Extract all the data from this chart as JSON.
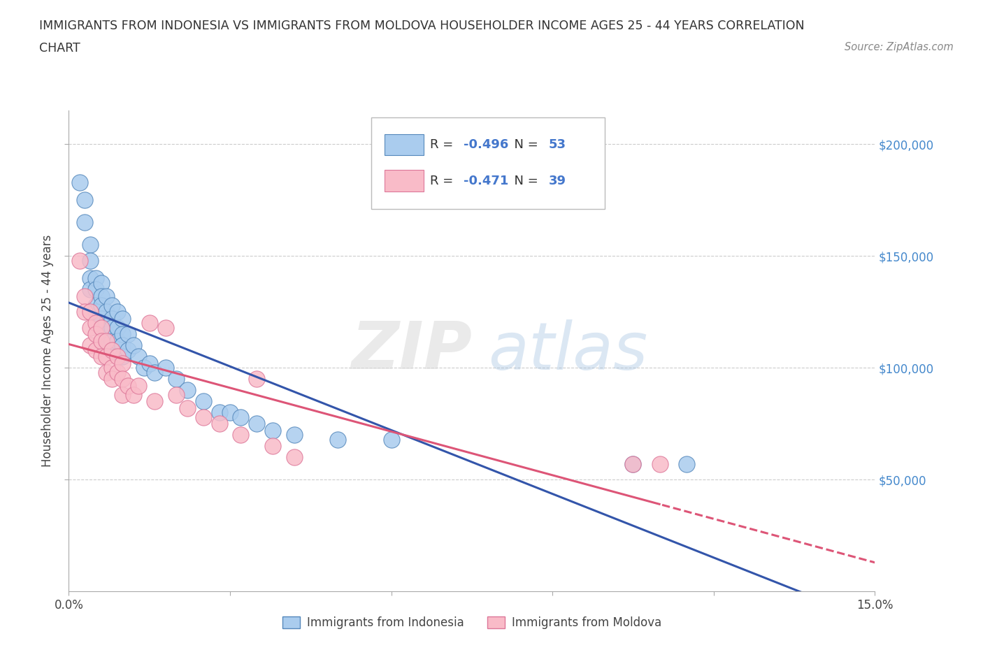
{
  "title_line1": "IMMIGRANTS FROM INDONESIA VS IMMIGRANTS FROM MOLDOVA HOUSEHOLDER INCOME AGES 25 - 44 YEARS CORRELATION",
  "title_line2": "CHART",
  "source": "Source: ZipAtlas.com",
  "ylabel": "Householder Income Ages 25 - 44 years",
  "xlim": [
    0.0,
    0.15
  ],
  "ylim": [
    0,
    215000
  ],
  "yticks": [
    50000,
    100000,
    150000,
    200000
  ],
  "yticklabels": [
    "$50,000",
    "$100,000",
    "$150,000",
    "$200,000"
  ],
  "indonesia_color": "#aaccee",
  "indonesia_edge": "#5588bb",
  "moldova_color": "#f9bbc8",
  "moldova_edge": "#dd7799",
  "indonesia_R": -0.496,
  "indonesia_N": 53,
  "moldova_R": -0.471,
  "moldova_N": 39,
  "indonesia_line_color": "#3355aa",
  "moldova_line_color": "#dd5577",
  "indonesia_x": [
    0.002,
    0.003,
    0.003,
    0.004,
    0.004,
    0.004,
    0.004,
    0.005,
    0.005,
    0.005,
    0.005,
    0.006,
    0.006,
    0.006,
    0.006,
    0.006,
    0.007,
    0.007,
    0.007,
    0.007,
    0.007,
    0.008,
    0.008,
    0.008,
    0.008,
    0.009,
    0.009,
    0.009,
    0.01,
    0.01,
    0.01,
    0.01,
    0.011,
    0.011,
    0.012,
    0.013,
    0.014,
    0.015,
    0.016,
    0.018,
    0.02,
    0.022,
    0.025,
    0.028,
    0.03,
    0.032,
    0.035,
    0.038,
    0.042,
    0.05,
    0.06,
    0.105,
    0.115
  ],
  "indonesia_y": [
    183000,
    175000,
    165000,
    155000,
    148000,
    140000,
    135000,
    140000,
    135000,
    128000,
    125000,
    138000,
    132000,
    128000,
    122000,
    118000,
    132000,
    125000,
    120000,
    115000,
    110000,
    128000,
    122000,
    118000,
    112000,
    125000,
    118000,
    112000,
    122000,
    115000,
    110000,
    105000,
    115000,
    108000,
    110000,
    105000,
    100000,
    102000,
    98000,
    100000,
    95000,
    90000,
    85000,
    80000,
    80000,
    78000,
    75000,
    72000,
    70000,
    68000,
    68000,
    57000,
    57000
  ],
  "moldova_x": [
    0.002,
    0.003,
    0.003,
    0.004,
    0.004,
    0.004,
    0.005,
    0.005,
    0.005,
    0.006,
    0.006,
    0.006,
    0.007,
    0.007,
    0.007,
    0.008,
    0.008,
    0.008,
    0.009,
    0.009,
    0.01,
    0.01,
    0.01,
    0.011,
    0.012,
    0.013,
    0.015,
    0.016,
    0.02,
    0.022,
    0.025,
    0.028,
    0.032,
    0.038,
    0.042,
    0.035,
    0.018,
    0.105,
    0.11
  ],
  "moldova_y": [
    148000,
    132000,
    125000,
    125000,
    118000,
    110000,
    120000,
    115000,
    108000,
    118000,
    112000,
    105000,
    112000,
    105000,
    98000,
    108000,
    100000,
    95000,
    105000,
    98000,
    102000,
    95000,
    88000,
    92000,
    88000,
    92000,
    120000,
    85000,
    88000,
    82000,
    78000,
    75000,
    70000,
    65000,
    60000,
    95000,
    118000,
    57000,
    57000
  ]
}
